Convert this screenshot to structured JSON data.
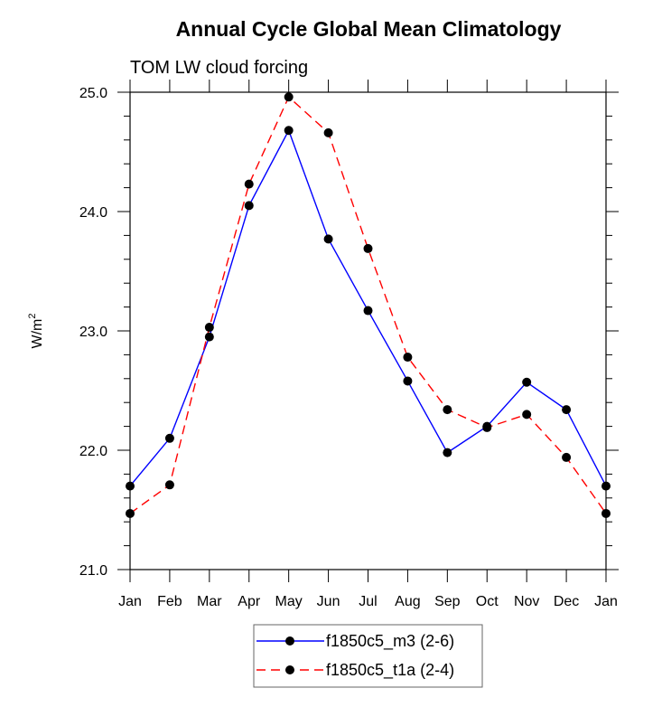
{
  "chart_data": {
    "type": "line",
    "title": "Annual Cycle Global Mean Climatology",
    "subtitle": "TOM LW cloud forcing",
    "xlabel": "",
    "ylabel": "W/m",
    "ylabel_superscript": "2",
    "categories": [
      "Jan",
      "Feb",
      "Mar",
      "Apr",
      "May",
      "Jun",
      "Jul",
      "Aug",
      "Sep",
      "Oct",
      "Nov",
      "Dec",
      "Jan"
    ],
    "ylim": [
      21.0,
      25.0
    ],
    "yticks": [
      21.0,
      22.0,
      23.0,
      24.0,
      25.0
    ],
    "ytick_labels": [
      "21.0",
      "22.0",
      "23.0",
      "24.0",
      "25.0"
    ],
    "yminor_step": 0.2,
    "grid": false,
    "legend_position": "bottom-center",
    "series": [
      {
        "name": "f1850c5_m3 (2-6)",
        "color": "#0000ff",
        "dash": "solid",
        "marker": "filled-circle",
        "values": [
          21.7,
          22.1,
          22.95,
          24.05,
          24.68,
          23.77,
          23.17,
          22.58,
          21.98,
          22.2,
          22.57,
          22.34,
          21.7
        ]
      },
      {
        "name": "f1850c5_t1a (2-4)",
        "color": "#ff0000",
        "dash": "dashed",
        "marker": "filled-circle",
        "values": [
          21.47,
          21.71,
          23.03,
          24.23,
          24.96,
          24.66,
          23.69,
          22.78,
          22.34,
          22.19,
          22.3,
          21.94,
          21.47
        ]
      }
    ]
  }
}
